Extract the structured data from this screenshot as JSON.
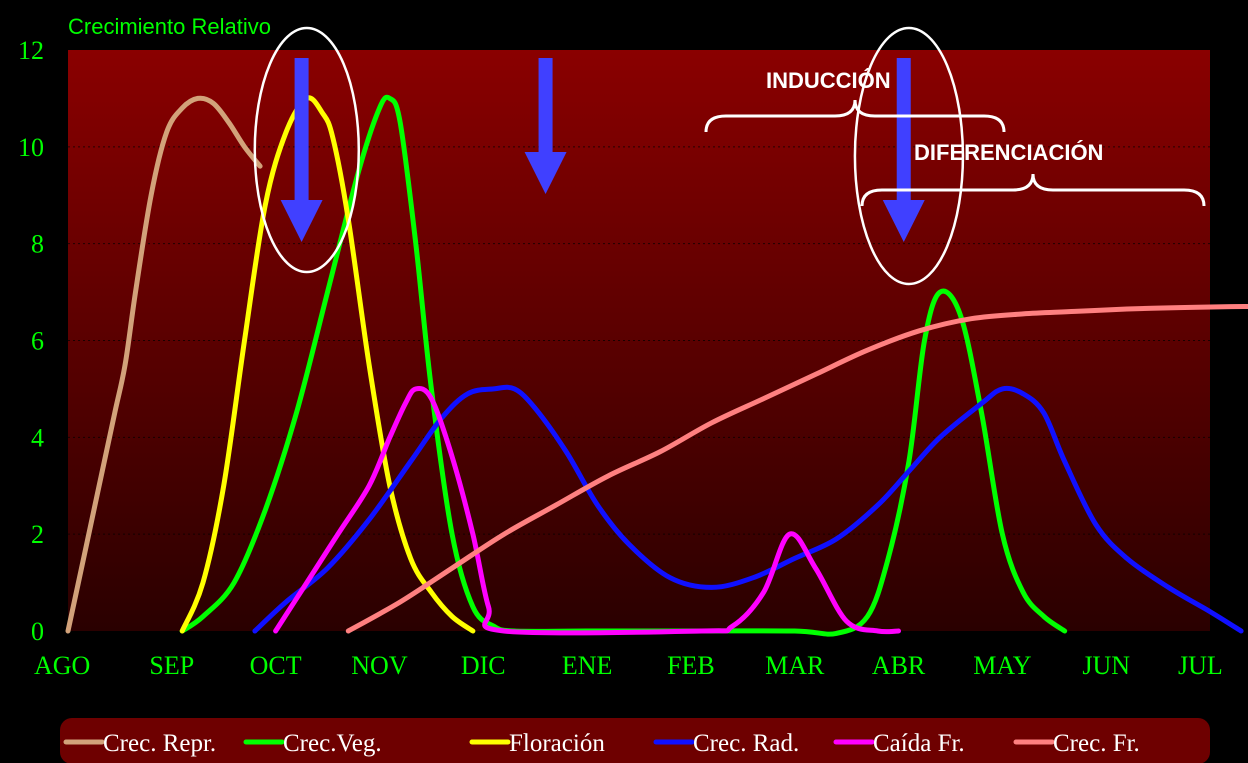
{
  "chart_data": {
    "type": "line",
    "title": "Crecimiento Relativo",
    "xlabel": "",
    "ylabel": "",
    "ylim": [
      0,
      12
    ],
    "yticks": [
      "0",
      "2",
      "4",
      "6",
      "8",
      "10",
      "12"
    ],
    "categories": [
      "AGO",
      "SEP",
      "OCT",
      "NOV",
      "DIC",
      "ENE",
      "FEB",
      "MAR",
      "ABR",
      "MAY",
      "JUN",
      "JUL"
    ],
    "grid": true,
    "legend_position": "bottom",
    "series": [
      {
        "name": "Crec. Repr.",
        "color": "#d2a27a",
        "x": [
          0,
          0.15,
          0.3,
          0.45,
          0.55,
          0.65,
          0.8,
          0.95,
          1.1,
          1.25,
          1.4,
          1.55,
          1.7,
          1.85
        ],
        "values": [
          0,
          1.5,
          3,
          4.5,
          5.5,
          7,
          9,
          10.3,
          10.8,
          11,
          10.9,
          10.5,
          10,
          9.6
        ]
      },
      {
        "name": "Crec.Veg.",
        "color": "#00ff00",
        "x": [
          1.1,
          1.3,
          1.6,
          1.9,
          2.2,
          2.5,
          2.8,
          3.0,
          3.1,
          3.2,
          3.35,
          3.5,
          3.7,
          3.9,
          4.1,
          4.3,
          5.0,
          6.0,
          7.0,
          7.4,
          7.7,
          7.9,
          8.1,
          8.25,
          8.4,
          8.6,
          8.8,
          9.0,
          9.2,
          9.4,
          9.6
        ],
        "values": [
          0,
          0.3,
          1,
          2.5,
          4.5,
          7,
          9.5,
          10.8,
          11,
          10.5,
          8,
          5,
          2,
          0.5,
          0.1,
          0,
          0,
          0,
          0,
          -0.05,
          0.3,
          1.5,
          3.5,
          6,
          7,
          6.5,
          4.5,
          2,
          0.8,
          0.3,
          0
        ]
      },
      {
        "name": "Floración",
        "color": "#ffff00",
        "x": [
          1.1,
          1.3,
          1.5,
          1.7,
          1.9,
          2.1,
          2.3,
          2.45,
          2.55,
          2.7,
          2.9,
          3.1,
          3.3,
          3.5,
          3.7,
          3.9
        ],
        "values": [
          0,
          1,
          3,
          6,
          8.8,
          10.3,
          11,
          10.7,
          10.2,
          8.5,
          5.5,
          3,
          1.5,
          0.8,
          0.3,
          0
        ]
      },
      {
        "name": "Crec. Rad.",
        "color": "#1010ff",
        "x": [
          1.8,
          2.1,
          2.5,
          2.9,
          3.3,
          3.6,
          3.85,
          4.1,
          4.3,
          4.5,
          4.8,
          5.1,
          5.4,
          5.8,
          6.2,
          6.6,
          7.0,
          7.4,
          7.8,
          8.1,
          8.4,
          8.8,
          9.0,
          9.2,
          9.4,
          9.6,
          9.9,
          10.2,
          10.6,
          11.0,
          11.3
        ],
        "values": [
          0,
          0.6,
          1.3,
          2.3,
          3.5,
          4.4,
          4.9,
          5,
          5,
          4.6,
          3.7,
          2.6,
          1.8,
          1.1,
          0.9,
          1.1,
          1.5,
          1.9,
          2.6,
          3.3,
          4,
          4.7,
          5,
          4.9,
          4.5,
          3.5,
          2.2,
          1.5,
          0.9,
          0.4,
          0
        ]
      },
      {
        "name": "Caída Fr.",
        "color": "#ff00ff",
        "x": [
          2.0,
          2.3,
          2.6,
          2.9,
          3.1,
          3.25,
          3.35,
          3.5,
          3.7,
          3.9,
          4.05,
          4.2,
          6.1,
          6.4,
          6.7,
          6.95,
          7.2,
          7.5,
          7.8,
          8.0
        ],
        "values": [
          0,
          1,
          2,
          3,
          4,
          4.7,
          5,
          4.8,
          3.6,
          2,
          0.5,
          0,
          0,
          0.1,
          0.8,
          2,
          1.3,
          0.2,
          0,
          0
        ]
      },
      {
        "name": "Crec. Fr.",
        "color": "#ff8080",
        "x": [
          2.7,
          3.2,
          3.7,
          4.2,
          4.7,
          5.2,
          5.7,
          6.2,
          6.7,
          7.2,
          7.7,
          8.2,
          8.7,
          9.2,
          9.7,
          10.2,
          10.7,
          11.2,
          11.5
        ],
        "values": [
          0,
          0.6,
          1.3,
          2,
          2.6,
          3.2,
          3.7,
          4.3,
          4.8,
          5.3,
          5.8,
          6.2,
          6.45,
          6.55,
          6.6,
          6.65,
          6.68,
          6.7,
          6.7
        ]
      }
    ],
    "annotations": {
      "induccion": "INDUCCIÓN",
      "diferenciacion": "DIFERENCIACIÓN"
    },
    "arrow_months": [
      2.25,
      4.6,
      8.05
    ],
    "circled_months": [
      2.3,
      8.1
    ]
  },
  "colors": {
    "background": "#000000",
    "plot_top": "#8a0000",
    "plot_bottom": "#2a0000",
    "axis_text": "#00ff00",
    "arrow": "#4040ff",
    "legend_bg": "#6e0000"
  }
}
